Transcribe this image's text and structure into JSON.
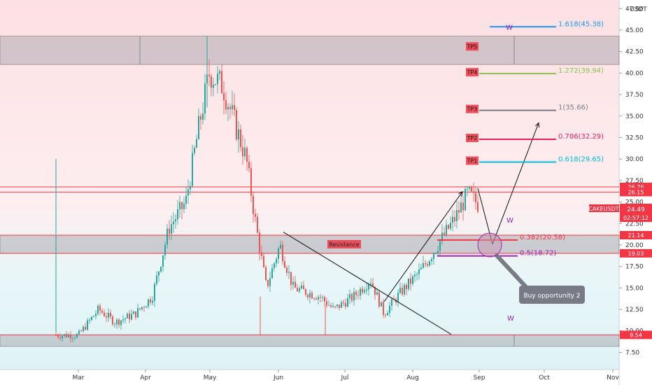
{
  "chart_data": {
    "type": "candlestick",
    "symbol": "CAKEUSDT",
    "currency": "USDT",
    "current_price": "24.49",
    "countdown": "02:57:12",
    "x_labels": [
      "Mar",
      "Apr",
      "May",
      "Jun",
      "Jul",
      "Aug",
      "Sep",
      "Oct",
      "Nov"
    ],
    "x_values": [
      0,
      1,
      2,
      3,
      4,
      5,
      6,
      7,
      8
    ],
    "y_ticks": [
      7.5,
      10.0,
      12.5,
      15.0,
      17.5,
      20.0,
      22.5,
      25.0,
      27.5,
      30.0,
      32.5,
      35.0,
      37.5,
      40.0,
      42.5,
      45.0,
      47.5
    ],
    "y_tick_labels": [
      "7.50",
      "10.00",
      "12.50",
      "15.00",
      "17.50",
      "20.00",
      "22.50",
      "25.00",
      "27.50",
      "30.00",
      "32.50",
      "35.00",
      "37.50",
      "40.00",
      "42.50",
      "45.00",
      "47.50"
    ],
    "ylim": [
      5.5,
      48.5
    ],
    "price_tags": [
      {
        "value": 26.76,
        "label": "26.76"
      },
      {
        "value": 26.15,
        "label": "26.15"
      },
      {
        "value": 21.14,
        "label": "21.14"
      },
      {
        "value": 19.03,
        "label": "19.03"
      },
      {
        "value": 9.54,
        "label": "9.54"
      }
    ],
    "zones": [
      {
        "low": 41.0,
        "high": 44.3
      },
      {
        "low": 19.03,
        "high": 21.14,
        "label": "Resistance"
      },
      {
        "low": 8.2,
        "high": 9.54
      }
    ],
    "horizontal_lines": [
      26.76,
      26.15,
      21.14,
      19.03,
      9.54
    ],
    "fib_levels": [
      {
        "label": "1.618(45.38)",
        "value": 45.38,
        "tp": "",
        "color": "#2196f3"
      },
      {
        "label": "1.272(39.94)",
        "value": 39.94,
        "tp": "TP4",
        "color": "#8bc34a"
      },
      {
        "label": "1(35.66)",
        "value": 35.66,
        "tp": "TP3",
        "color": "#787b86"
      },
      {
        "label": "0.786(32.29)",
        "value": 32.29,
        "tp": "TP2",
        "color": "#e91e63"
      },
      {
        "label": "0.618(29.65)",
        "value": 29.65,
        "tp": "TP1",
        "color": "#00bcd4"
      },
      {
        "label": "0.382(20.58)",
        "value": 20.58,
        "tp": "",
        "color": "#f23645"
      },
      {
        "label": "0.5(18.72)",
        "value": 18.72,
        "tp": "",
        "color": "#9c27b0"
      }
    ],
    "tp5_label": "TP5",
    "wave_labels": [
      "W",
      "W",
      "W"
    ],
    "callout": "Buy opportunity 2",
    "candle_path_anchors": [
      {
        "x": 0.0,
        "y": 9.5
      },
      {
        "x": 0.3,
        "y": 12.5
      },
      {
        "x": 0.55,
        "y": 11.0
      },
      {
        "x": 0.85,
        "y": 12.0
      },
      {
        "x": 1.1,
        "y": 14.0
      },
      {
        "x": 1.35,
        "y": 22.0
      },
      {
        "x": 1.6,
        "y": 25.0
      },
      {
        "x": 1.8,
        "y": 34.0
      },
      {
        "x": 1.95,
        "y": 40.0
      },
      {
        "x": 2.15,
        "y": 38.5
      },
      {
        "x": 2.5,
        "y": 30.0
      },
      {
        "x": 2.65,
        "y": 22.0
      },
      {
        "x": 2.8,
        "y": 15.0
      },
      {
        "x": 3.0,
        "y": 20.0
      },
      {
        "x": 3.2,
        "y": 15.0
      },
      {
        "x": 3.6,
        "y": 14.0
      },
      {
        "x": 3.8,
        "y": 12.5
      },
      {
        "x": 4.1,
        "y": 14.0
      },
      {
        "x": 4.35,
        "y": 16.0
      },
      {
        "x": 4.55,
        "y": 12.0
      },
      {
        "x": 4.8,
        "y": 14.5
      },
      {
        "x": 5.1,
        "y": 17.0
      },
      {
        "x": 5.35,
        "y": 20.0
      },
      {
        "x": 5.6,
        "y": 23.0
      },
      {
        "x": 5.8,
        "y": 26.0
      },
      {
        "x": 5.98,
        "y": 24.5
      }
    ]
  }
}
